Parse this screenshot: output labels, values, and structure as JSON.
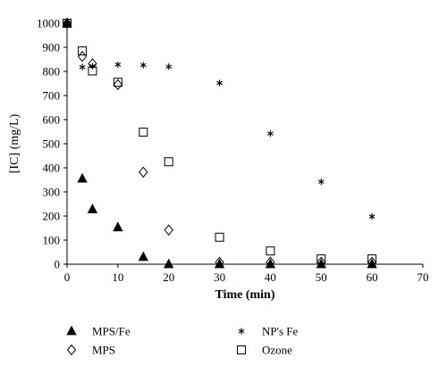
{
  "chart_data": {
    "type": "scatter",
    "xlabel": "Time (min)",
    "ylabel": "[IC] (mg/L)",
    "xlim": [
      0,
      70
    ],
    "ylim": [
      0,
      1000
    ],
    "xticks": [
      "0",
      "10",
      "20",
      "30",
      "40",
      "50",
      "60",
      "70"
    ],
    "yticks": [
      "0",
      "100",
      "200",
      "300",
      "400",
      "500",
      "600",
      "700",
      "800",
      "900",
      "1000"
    ],
    "grid": false,
    "legend_position": "bottom",
    "series": [
      {
        "name": "MPS/Fe",
        "marker": "filled-triangle",
        "color": "#000000",
        "points": [
          [
            0,
            1000
          ],
          [
            3,
            355
          ],
          [
            5,
            228
          ],
          [
            10,
            153
          ],
          [
            15,
            30
          ],
          [
            20,
            0
          ],
          [
            30,
            0
          ],
          [
            40,
            0
          ],
          [
            50,
            0
          ],
          [
            60,
            0
          ]
        ]
      },
      {
        "name": "NP's Fe",
        "marker": "asterisk",
        "color": "#000000",
        "points": [
          [
            0,
            1000
          ],
          [
            3,
            818
          ],
          [
            5,
            822
          ],
          [
            10,
            828
          ],
          [
            15,
            826
          ],
          [
            20,
            820
          ],
          [
            30,
            752
          ],
          [
            40,
            542
          ],
          [
            50,
            342
          ],
          [
            60,
            198
          ]
        ]
      },
      {
        "name": "MPS",
        "marker": "open-diamond",
        "color": "#000000",
        "points": [
          [
            0,
            1000
          ],
          [
            3,
            862
          ],
          [
            5,
            832
          ],
          [
            10,
            745
          ],
          [
            15,
            382
          ],
          [
            20,
            142
          ],
          [
            30,
            8
          ],
          [
            40,
            8
          ],
          [
            50,
            8
          ],
          [
            60,
            8
          ]
        ]
      },
      {
        "name": "Ozone",
        "marker": "open-square",
        "color": "#000000",
        "points": [
          [
            0,
            1000
          ],
          [
            3,
            885
          ],
          [
            5,
            802
          ],
          [
            10,
            755
          ],
          [
            15,
            548
          ],
          [
            20,
            425
          ],
          [
            30,
            112
          ],
          [
            40,
            55
          ],
          [
            50,
            22
          ],
          [
            60,
            22
          ]
        ]
      }
    ]
  }
}
